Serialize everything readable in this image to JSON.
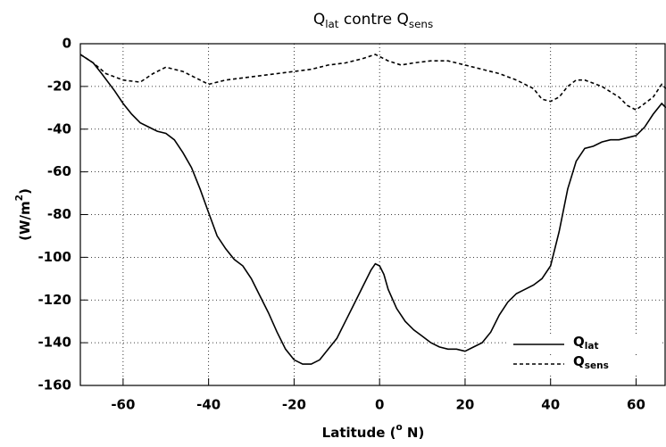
{
  "chart_data": {
    "type": "line",
    "title": [
      "Q",
      "lat",
      " contre Q",
      "sens"
    ],
    "xlabel": [
      "Latitude (",
      "o",
      " N)"
    ],
    "ylabel": [
      "(W/m",
      "2",
      ")"
    ],
    "xlim": [
      -70,
      67
    ],
    "ylim": [
      -160,
      0
    ],
    "xticks": [
      -60,
      -40,
      -20,
      0,
      20,
      40,
      60
    ],
    "yticks": [
      -160,
      -140,
      -120,
      -100,
      -80,
      -60,
      -40,
      -20,
      0
    ],
    "grid": true,
    "legend": "lower right",
    "series": [
      {
        "name": [
          "Q",
          "lat"
        ],
        "color": "#000000",
        "dash": "solid",
        "x": [
          -70,
          -67,
          -65,
          -62,
          -60,
          -58,
          -56,
          -54,
          -52,
          -50,
          -48,
          -46,
          -44,
          -42,
          -40,
          -38,
          -36,
          -34,
          -32,
          -30,
          -28,
          -26,
          -24,
          -22,
          -20,
          -18,
          -16,
          -14,
          -12,
          -10,
          -8,
          -6,
          -4,
          -2,
          -1,
          0,
          1,
          2,
          4,
          6,
          8,
          10,
          12,
          14,
          16,
          18,
          20,
          22,
          24,
          26,
          28,
          30,
          32,
          34,
          36,
          38,
          40,
          42,
          44,
          46,
          48,
          50,
          52,
          54,
          56,
          58,
          60,
          62,
          64,
          66,
          67
        ],
        "values": [
          -5,
          -9,
          -14,
          -22,
          -28,
          -33,
          -37,
          -39,
          -41,
          -42,
          -45,
          -51,
          -58,
          -68,
          -79,
          -90,
          -96,
          -101,
          -104,
          -110,
          -118,
          -126,
          -135,
          -143,
          -148,
          -150,
          -150,
          -148,
          -143,
          -138,
          -130,
          -122,
          -114,
          -106,
          -103,
          -104,
          -108,
          -115,
          -124,
          -130,
          -134,
          -137,
          -140,
          -142,
          -143,
          -143,
          -144,
          -142,
          -140,
          -135,
          -127,
          -121,
          -117,
          -115,
          -113,
          -110,
          -104,
          -88,
          -68,
          -55,
          -49,
          -48,
          -46,
          -45,
          -45,
          -44,
          -43,
          -39,
          -33,
          -28,
          -30
        ]
      },
      {
        "name": [
          "Q",
          "sens"
        ],
        "color": "#000000",
        "dash": "dashed",
        "x": [
          -70,
          -67,
          -64,
          -60,
          -56,
          -53,
          -50,
          -46,
          -42,
          -40,
          -36,
          -32,
          -28,
          -24,
          -20,
          -16,
          -12,
          -8,
          -4,
          -1,
          2,
          5,
          8,
          12,
          16,
          20,
          24,
          28,
          32,
          36,
          38,
          40,
          42,
          44,
          46,
          48,
          52,
          56,
          58,
          60,
          62,
          64,
          66,
          67
        ],
        "values": [
          -5,
          -9,
          -14,
          -17,
          -18,
          -14,
          -11,
          -13,
          -17,
          -19,
          -17,
          -16,
          -15,
          -14,
          -13,
          -12,
          -10,
          -9,
          -7,
          -5,
          -8,
          -10,
          -9,
          -8,
          -8,
          -10,
          -12,
          -14,
          -17,
          -21,
          -26,
          -27,
          -25,
          -20,
          -17,
          -17,
          -20,
          -25,
          -29,
          -31,
          -28,
          -25,
          -19,
          -21
        ]
      }
    ]
  }
}
